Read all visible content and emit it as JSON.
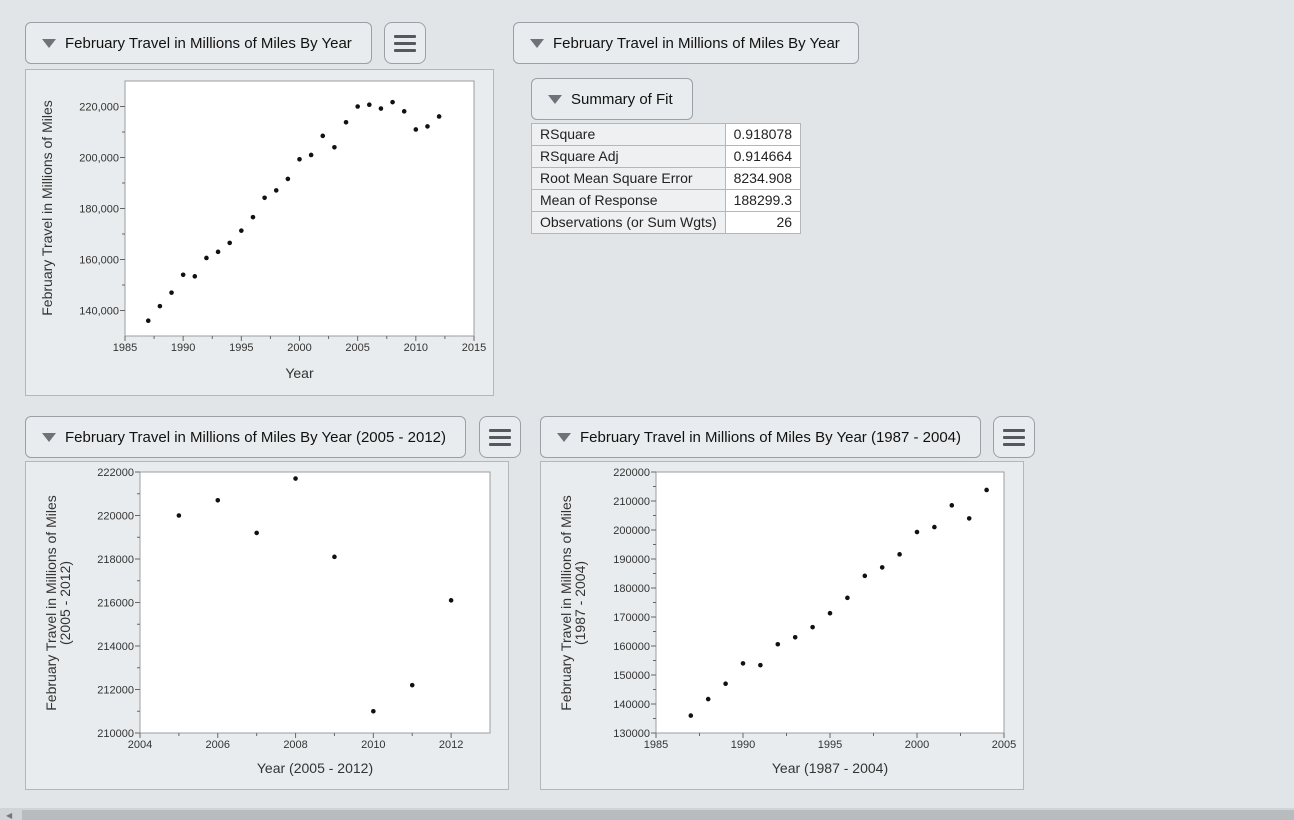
{
  "panels": {
    "top_left_title": "February Travel in Millions of Miles By Year",
    "top_right_title": "February Travel in Millions of Miles By Year",
    "summary_title": "Summary of Fit",
    "bottom_left_title": "February Travel in Millions of Miles By Year (2005 - 2012)",
    "bottom_right_title": "February Travel in Millions of Miles By Year (1987 - 2004)"
  },
  "summary_of_fit": [
    {
      "label": "RSquare",
      "value": "0.918078"
    },
    {
      "label": "RSquare Adj",
      "value": "0.914664"
    },
    {
      "label": "Root Mean Square Error",
      "value": "8234.908"
    },
    {
      "label": "Mean of Response",
      "value": "188299.3"
    },
    {
      "label": "Observations (or Sum Wgts)",
      "value": "26"
    }
  ],
  "chart_data": [
    {
      "type": "scatter",
      "xlabel": "Year",
      "ylabel": "February Travel in Millions of Miles",
      "xlim": [
        1985,
        2015
      ],
      "ylim": [
        130000,
        230000
      ],
      "xticks": [
        "1985",
        "1990",
        "1995",
        "2000",
        "2005",
        "2010",
        "2015"
      ],
      "yticks": [
        "140,000",
        "160,000",
        "180,000",
        "200,000",
        "220,000"
      ],
      "x": [
        1987,
        1988,
        1989,
        1990,
        1991,
        1992,
        1993,
        1994,
        1995,
        1996,
        1997,
        1998,
        1999,
        2000,
        2001,
        2002,
        2003,
        2004,
        2005,
        2006,
        2007,
        2008,
        2009,
        2010,
        2011,
        2012
      ],
      "y": [
        136000,
        141700,
        147000,
        154000,
        153400,
        160600,
        163000,
        166500,
        171300,
        176600,
        184200,
        187100,
        191600,
        199300,
        201000,
        208500,
        204000,
        213800,
        220000,
        220700,
        219200,
        221700,
        218100,
        211000,
        212200,
        216100
      ]
    },
    {
      "type": "scatter",
      "xlabel": "Year (2005 - 2012)",
      "ylabel": "February Travel in Millions of Miles (2005 - 2012)",
      "xlim": [
        2004,
        2013
      ],
      "ylim": [
        210000,
        222000
      ],
      "xticks": [
        "2004",
        "2006",
        "2008",
        "2010",
        "2012"
      ],
      "yticks": [
        "210000",
        "212000",
        "214000",
        "216000",
        "218000",
        "220000",
        "222000"
      ],
      "x": [
        2005,
        2006,
        2007,
        2008,
        2009,
        2010,
        2011,
        2012
      ],
      "y": [
        220000,
        220700,
        219200,
        221700,
        218100,
        211000,
        212200,
        216100
      ]
    },
    {
      "type": "scatter",
      "xlabel": "Year (1987 - 2004)",
      "ylabel": "February Travel in Millions of Miles (1987 - 2004)",
      "xlim": [
        1985,
        2005
      ],
      "ylim": [
        130000,
        220000
      ],
      "xticks": [
        "1985",
        "1990",
        "1995",
        "2000",
        "2005"
      ],
      "yticks": [
        "130000",
        "140000",
        "150000",
        "160000",
        "170000",
        "180000",
        "190000",
        "200000",
        "210000",
        "220000"
      ],
      "x": [
        1987,
        1988,
        1989,
        1990,
        1991,
        1992,
        1993,
        1994,
        1995,
        1996,
        1997,
        1998,
        1999,
        2000,
        2001,
        2002,
        2003,
        2004
      ],
      "y": [
        136000,
        141700,
        147000,
        154000,
        153400,
        160600,
        163000,
        166500,
        171300,
        176600,
        184200,
        187100,
        191600,
        199300,
        201000,
        208500,
        204000,
        213800
      ]
    }
  ]
}
